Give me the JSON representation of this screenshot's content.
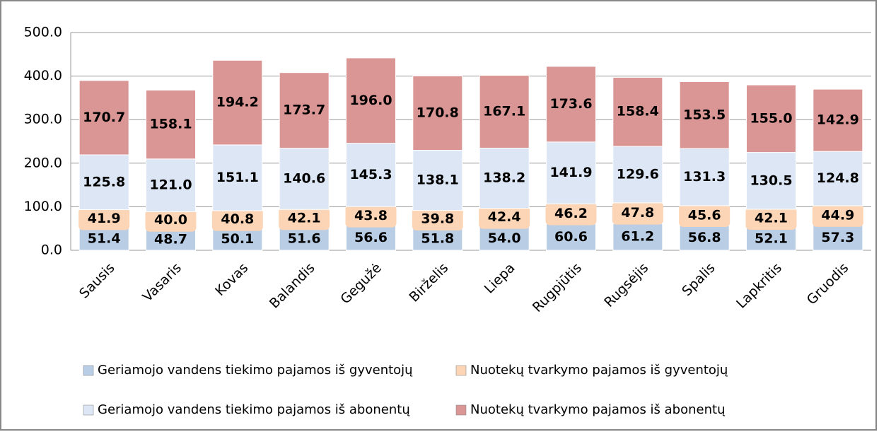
{
  "chart_data": {
    "type": "stacked_bar",
    "categories": [
      "Sausis",
      "Vasaris",
      "Kovas",
      "Balandis",
      "Gegužė",
      "Birželis",
      "Liepa",
      "Rugpjūtis",
      "Rugsėjis",
      "Spalis",
      "Lapkritis",
      "Gruodis"
    ],
    "series": [
      {
        "name": "Geriamojo vandens tiekimo pajamos iš gyventojų",
        "color": "#b9cde5",
        "values": [
          51.4,
          48.7,
          50.1,
          51.6,
          56.6,
          51.8,
          54.0,
          60.6,
          61.2,
          56.8,
          52.1,
          57.3
        ],
        "value_labels": [
          "51.4",
          "48.7",
          "50.1",
          "51.6",
          "56.6",
          "51.8",
          "54.0",
          "60.6",
          "61.2",
          "56.8",
          "52.1",
          "57.3"
        ]
      },
      {
        "name": "Nuotekų tvarkymo pajamos iš gyventojų",
        "color": "#fbd5b5",
        "values": [
          41.9,
          40.0,
          40.8,
          42.1,
          43.8,
          39.8,
          42.4,
          46.2,
          47.8,
          45.6,
          42.1,
          44.9
        ],
        "value_labels": [
          "41.9",
          "40.0",
          "40.8",
          "42.1",
          "43.8",
          "39.8",
          "42.4",
          "46.2",
          "47.8",
          "45.6",
          "42.1",
          "44.9"
        ]
      },
      {
        "name": "Geriamojo vandens tiekimo pajamos iš abonentų",
        "color": "#dce6f4",
        "values": [
          125.8,
          121.0,
          151.1,
          140.6,
          145.3,
          138.1,
          138.2,
          141.9,
          129.6,
          131.3,
          130.5,
          124.8
        ],
        "value_labels": [
          "125.8",
          "121.0",
          "151.1",
          "140.6",
          "145.3",
          "138.1",
          "138.2",
          "141.9",
          "129.6",
          "131.3",
          "130.5",
          "124.8"
        ]
      },
      {
        "name": "Nuotekų tvarkymo pajamos iš abonentų",
        "color": "#d99694",
        "values": [
          170.7,
          158.1,
          194.2,
          173.7,
          196.0,
          170.8,
          167.1,
          173.6,
          158.4,
          153.5,
          155.0,
          142.9
        ],
        "value_labels": [
          "170.7",
          "158.1",
          "194.2",
          "173.7",
          "196.0",
          "170.8",
          "167.1",
          "173.6",
          "158.4",
          "153.5",
          "155.0",
          "142.9"
        ]
      }
    ],
    "ylim": [
      0,
      500
    ],
    "yticks": [
      {
        "value": 0,
        "label": "0.0"
      },
      {
        "value": 100,
        "label": "100.0"
      },
      {
        "value": 200,
        "label": "200.0"
      },
      {
        "value": 300,
        "label": "300.0"
      },
      {
        "value": 400,
        "label": "400.0"
      },
      {
        "value": 500,
        "label": "500.0"
      }
    ],
    "grid": true,
    "legend": "bottom"
  }
}
